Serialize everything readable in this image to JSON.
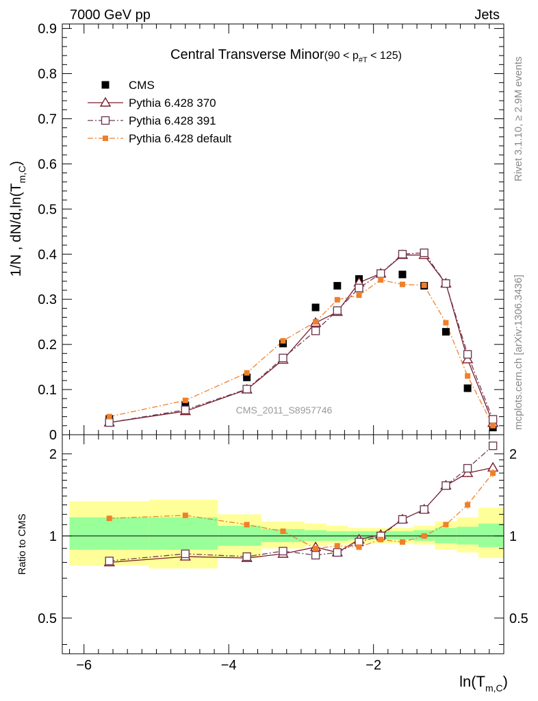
{
  "header": {
    "left": "7000 GeV pp",
    "right": "Jets"
  },
  "side_labels": {
    "rivet": "Rivet 3.1.10, ≥ 2.9M events",
    "mcplots": "mcplots.cern.ch [arXiv:1306.3436]"
  },
  "chart_data": [
    {
      "type": "scatter",
      "panel": "main",
      "title_main": "Central Transverse Minor",
      "title_cut": "(90 < p",
      "title_cut_sub": "#T",
      "title_cut_end": "  < 125)",
      "ylabel": "1/N , dN/d,ln(T",
      "ylabel_sub": "m,C",
      "ylabel_end": ")",
      "watermark": "CMS_2011_S8957746",
      "xlim": [
        -6.3,
        -0.2
      ],
      "ylim": [
        0,
        0.91
      ],
      "yticks": [
        0,
        0.1,
        0.2,
        0.3,
        0.4,
        0.5,
        0.6,
        0.7,
        0.8,
        0.9
      ],
      "ytick_labels": [
        "0",
        "0.1",
        "0.2",
        "0.3",
        "0.4",
        "0.5",
        "0.6",
        "0.7",
        "0.8",
        "0.9"
      ],
      "legend_placement": "top-left",
      "x": [
        -5.65,
        -4.6,
        -3.75,
        -3.25,
        -2.8,
        -2.5,
        -2.2,
        -1.9,
        -1.6,
        -1.3,
        -1.0,
        -0.7,
        -0.35
      ],
      "series": [
        {
          "name": "CMS",
          "color": "#000000",
          "marker": "filled-square",
          "values": [
            0.035,
            0.065,
            0.127,
            0.202,
            0.282,
            0.33,
            0.345,
            0.357,
            0.355,
            0.33,
            0.228,
            0.103,
            0.016
          ]
        },
        {
          "name": "Pythia 6.428 370",
          "color": "#7a1a2a",
          "marker": "open-triangle",
          "line": "solid",
          "values": [
            0.027,
            0.052,
            0.1,
            0.166,
            0.248,
            0.272,
            0.337,
            0.357,
            0.398,
            0.398,
            0.335,
            0.167,
            0.026
          ]
        },
        {
          "name": "Pythia 6.428 391",
          "color": "#6e3a52",
          "marker": "open-square",
          "line": "dash-dot",
          "values": [
            0.027,
            0.055,
            0.101,
            0.17,
            0.23,
            0.275,
            0.325,
            0.357,
            0.4,
            0.403,
            0.335,
            0.178,
            0.034
          ]
        },
        {
          "name": "Pythia 6.428 default",
          "color": "#f07f2a",
          "marker": "filled-square",
          "line": "dash-dot",
          "values": [
            0.04,
            0.076,
            0.137,
            0.208,
            0.25,
            0.299,
            0.309,
            0.343,
            0.333,
            0.331,
            0.248,
            0.13,
            0.02
          ]
        }
      ]
    },
    {
      "type": "scatter",
      "panel": "ratio",
      "ylabel": "Ratio to CMS",
      "xlabel": "ln(T",
      "xlabel_sub": "m,C",
      "xlabel_end": ")",
      "xlim": [
        -6.3,
        -0.2
      ],
      "ylim": [
        0.37,
        2.35
      ],
      "yscale": "log",
      "xticks": [
        -6,
        -4,
        -2
      ],
      "xtick_labels": [
        "−6",
        "−4",
        "−2"
      ],
      "yticks": [
        0.5,
        1,
        2
      ],
      "ytick_labels": [
        "0.5",
        "1",
        "2"
      ],
      "band_edges": [
        -6.2,
        -5.1,
        -4.15,
        -3.55,
        -2.95,
        -2.65,
        -2.35,
        -2.05,
        -1.75,
        -1.45,
        -1.15,
        -0.85,
        -0.55,
        -0.2
      ],
      "band_green_low": [
        0.89,
        0.89,
        0.92,
        0.95,
        0.96,
        0.96,
        0.97,
        0.97,
        0.97,
        0.96,
        0.94,
        0.93,
        0.91
      ],
      "band_green_high": [
        1.17,
        1.17,
        1.09,
        1.06,
        1.05,
        1.04,
        1.04,
        1.04,
        1.04,
        1.05,
        1.07,
        1.08,
        1.11
      ],
      "band_yellow_low": [
        0.78,
        0.76,
        0.83,
        0.9,
        0.92,
        0.93,
        0.94,
        0.94,
        0.94,
        0.93,
        0.89,
        0.87,
        0.83
      ],
      "band_yellow_high": [
        1.34,
        1.36,
        1.2,
        1.13,
        1.11,
        1.09,
        1.07,
        1.07,
        1.07,
        1.09,
        1.13,
        1.17,
        1.27
      ],
      "x": [
        -5.65,
        -4.6,
        -3.75,
        -3.25,
        -2.8,
        -2.5,
        -2.2,
        -1.9,
        -1.6,
        -1.3,
        -1.0,
        -0.7,
        -0.35
      ],
      "series": [
        {
          "name": "Pythia 6.428 370",
          "color": "#7a1a2a",
          "marker": "open-triangle",
          "line": "solid",
          "values": [
            0.8,
            0.84,
            0.83,
            0.86,
            0.91,
            0.87,
            0.97,
            1.01,
            1.15,
            1.25,
            1.53,
            1.7,
            1.78
          ]
        },
        {
          "name": "Pythia 6.428 391",
          "color": "#6e3a52",
          "marker": "open-square",
          "line": "dash-dot",
          "values": [
            0.81,
            0.86,
            0.84,
            0.88,
            0.85,
            0.87,
            0.95,
            1.0,
            1.15,
            1.25,
            1.53,
            1.77,
            2.14
          ]
        },
        {
          "name": "Pythia 6.428 default",
          "color": "#f07f2a",
          "marker": "filled-square",
          "line": "dash-dot",
          "values": [
            1.16,
            1.19,
            1.1,
            1.04,
            0.9,
            0.92,
            0.91,
            0.97,
            0.95,
            1.0,
            1.1,
            1.3,
            1.7
          ]
        }
      ]
    }
  ]
}
